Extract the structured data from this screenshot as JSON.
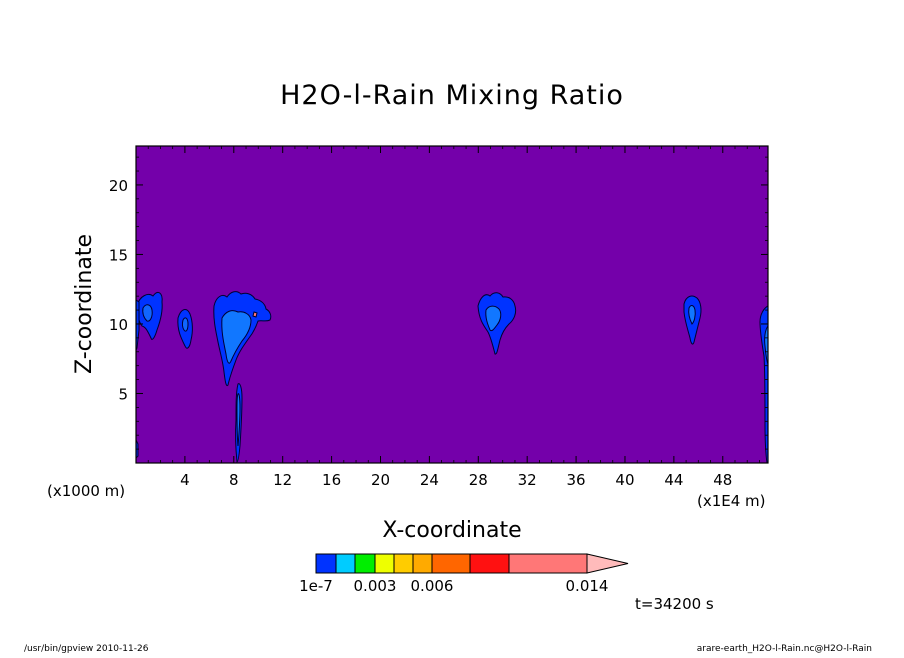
{
  "chart_data": {
    "type": "contour",
    "title": "H2O-l-Rain Mixing Ratio",
    "xlabel": "X-coordinate",
    "ylabel": "Z-coordinate",
    "x_unit": "(x1000 m)",
    "x_tick_scale": "(x1E4 m)",
    "xlim": [
      0,
      51.7
    ],
    "ylim": [
      0,
      22.8
    ],
    "x_ticks": [
      4,
      8,
      12,
      16,
      20,
      24,
      28,
      32,
      36,
      40,
      44,
      48
    ],
    "x_tick_labels": [
      "4",
      "8",
      "12",
      "16",
      "20",
      "24",
      "28",
      "32",
      "36",
      "40",
      "44",
      "48"
    ],
    "y_ticks": [
      5,
      10,
      15,
      20
    ],
    "y_tick_labels": [
      "5",
      "10",
      "15",
      "20"
    ],
    "background_level_color": "#7400aa",
    "colorbar": {
      "colors": [
        "#0033ff",
        "#00ccff",
        "#00ee00",
        "#eeff00",
        "#ffcc00",
        "#ffaa00",
        "#ff6600",
        "#ff1111",
        "#ff7777",
        "#ffbbbb"
      ],
      "tick_labels": [
        "1e-7",
        "0.003",
        "0.006",
        "0.014"
      ],
      "tick_values": [
        1e-07,
        0.003,
        0.006,
        0.014
      ]
    },
    "time_label": "t=34200 s",
    "rain_regions": [
      {
        "x_center": 1.4,
        "z_bottom": 8.8,
        "z_top": 12.3
      },
      {
        "x_center": 4.1,
        "z_bottom": 8.3,
        "z_top": 11.0
      },
      {
        "x_center": 8.3,
        "z_bottom": 5.7,
        "z_top": 12.4
      },
      {
        "x_center": 8.5,
        "z_bottom": 0.0,
        "z_top": 5.8
      },
      {
        "x_center": 29.2,
        "z_bottom": 7.9,
        "z_top": 12.3
      },
      {
        "x_center": 45.2,
        "z_bottom": 8.5,
        "z_top": 12.1
      },
      {
        "x_center": 51.4,
        "z_bottom": 0.0,
        "z_top": 11.2
      }
    ]
  },
  "footer": {
    "left": "/usr/bin/gpview  2010-11-26",
    "right": "arare-earth_H2O-l-Rain.nc@H2O-l-Rain"
  }
}
